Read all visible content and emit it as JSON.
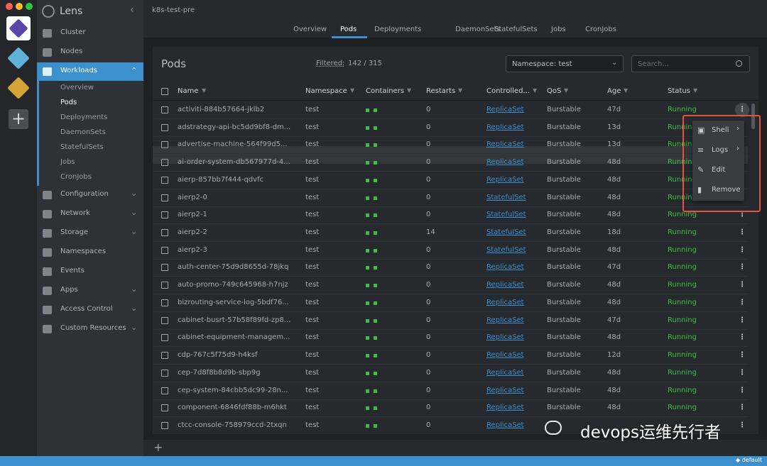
{
  "window": {
    "app_name": "Lens",
    "cluster": "k8s-test-pre"
  },
  "sidebar": {
    "items": [
      "Cluster",
      "Nodes",
      "Workloads",
      "Configuration",
      "Network",
      "Storage",
      "Namespaces",
      "Events",
      "Apps",
      "Access Control",
      "Custom Resources"
    ],
    "workloads_children": [
      "Overview",
      "Pods",
      "Deployments",
      "DaemonSets",
      "StatefulSets",
      "Jobs",
      "CronJobs"
    ]
  },
  "tabs": [
    "Overview",
    "Pods",
    "Deployments",
    "DaemonSets",
    "StatefulSets",
    "Jobs",
    "CronJobs"
  ],
  "panel": {
    "title": "Pods",
    "filtered_label": "Filtered:",
    "filtered_value": "142 / 315",
    "namespace": "Namespace: test",
    "search_placeholder": "Search..."
  },
  "table": {
    "columns": [
      "Name",
      "Namespace",
      "Containers",
      "Restarts",
      "Controlled...",
      "QoS",
      "Age",
      "Status"
    ],
    "rows": [
      {
        "name": "activiti-884b57664-jklb2",
        "namespace": "test",
        "restarts": 0,
        "controlled_by": "ReplicaSet",
        "qos": "Burstable",
        "age": "47d",
        "status": "Running"
      },
      {
        "name": "adstrategy-api-bc5dd9bf8-dm...",
        "namespace": "test",
        "restarts": 0,
        "controlled_by": "ReplicaSet",
        "qos": "Burstable",
        "age": "13d",
        "status": "Running"
      },
      {
        "name": "advertise-machine-564f99d5...",
        "namespace": "test",
        "restarts": 0,
        "controlled_by": "ReplicaSet",
        "qos": "Burstable",
        "age": "13d",
        "status": "Running"
      },
      {
        "name": "ai-order-system-db567977d-4...",
        "namespace": "test",
        "restarts": 0,
        "controlled_by": "ReplicaSet",
        "qos": "Burstable",
        "age": "48d",
        "status": "Running"
      },
      {
        "name": "aierp-857bb7f444-qdvfc",
        "namespace": "test",
        "restarts": 0,
        "controlled_by": "ReplicaSet",
        "qos": "Burstable",
        "age": "48d",
        "status": "Running"
      },
      {
        "name": "aierp2-0",
        "namespace": "test",
        "restarts": 0,
        "controlled_by": "StatefulSet",
        "qos": "Burstable",
        "age": "48d",
        "status": "Running"
      },
      {
        "name": "aierp2-1",
        "namespace": "test",
        "restarts": 0,
        "controlled_by": "StatefulSet",
        "qos": "Burstable",
        "age": "48d",
        "status": "Running"
      },
      {
        "name": "aierp2-2",
        "namespace": "test",
        "restarts": 14,
        "controlled_by": "StatefulSet",
        "qos": "Burstable",
        "age": "18d",
        "status": "Running"
      },
      {
        "name": "aierp2-3",
        "namespace": "test",
        "restarts": 0,
        "controlled_by": "StatefulSet",
        "qos": "Burstable",
        "age": "48d",
        "status": "Running"
      },
      {
        "name": "auth-center-75d9d8655d-78jkq",
        "namespace": "test",
        "restarts": 0,
        "controlled_by": "ReplicaSet",
        "qos": "Burstable",
        "age": "47d",
        "status": "Running"
      },
      {
        "name": "auto-promo-749c645968-h7njz",
        "namespace": "test",
        "restarts": 0,
        "controlled_by": "ReplicaSet",
        "qos": "Burstable",
        "age": "48d",
        "status": "Running"
      },
      {
        "name": "bizrouting-service-log-5bdf76...",
        "namespace": "test",
        "restarts": 0,
        "controlled_by": "ReplicaSet",
        "qos": "Burstable",
        "age": "48d",
        "status": "Running"
      },
      {
        "name": "cabinet-busrt-57b58f89fd-zp8...",
        "namespace": "test",
        "restarts": 0,
        "controlled_by": "ReplicaSet",
        "qos": "Burstable",
        "age": "47d",
        "status": "Running"
      },
      {
        "name": "cabinet-equipment-managem...",
        "namespace": "test",
        "restarts": 0,
        "controlled_by": "ReplicaSet",
        "qos": "Burstable",
        "age": "48d",
        "status": "Running"
      },
      {
        "name": "cdp-767c5f75d9-h4ksf",
        "namespace": "test",
        "restarts": 0,
        "controlled_by": "ReplicaSet",
        "qos": "Burstable",
        "age": "12d",
        "status": "Running"
      },
      {
        "name": "cep-7d8f8b8d9b-sbp9g",
        "namespace": "test",
        "restarts": 0,
        "controlled_by": "ReplicaSet",
        "qos": "Burstable",
        "age": "48d",
        "status": "Running"
      },
      {
        "name": "cep-system-84cbb5dc99-28n...",
        "namespace": "test",
        "restarts": 0,
        "controlled_by": "ReplicaSet",
        "qos": "Burstable",
        "age": "48d",
        "status": "Running"
      },
      {
        "name": "component-6846fdf88b-m6hkt",
        "namespace": "test",
        "restarts": 0,
        "controlled_by": "ReplicaSet",
        "qos": "Burstable",
        "age": "48d",
        "status": "Running"
      },
      {
        "name": "ctcc-console-758979ccd-2txqn",
        "namespace": "test",
        "restarts": 0,
        "controlled_by": "ReplicaSet"
      }
    ]
  },
  "menu": [
    "Shell",
    "Logs",
    "Edit",
    "Remove"
  ],
  "status_bar": "default",
  "watermark": "devops运维先行者"
}
